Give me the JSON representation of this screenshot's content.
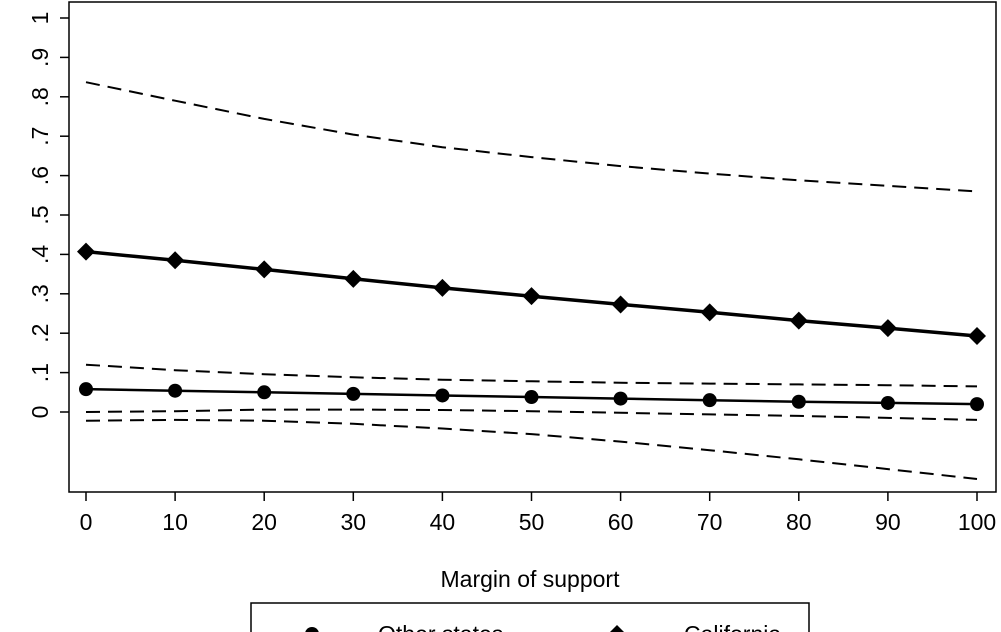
{
  "chart_data": {
    "type": "line",
    "xlabel": "Margin of support",
    "ylabel": "",
    "xlim": [
      0,
      100
    ],
    "ylim": [
      -0.2,
      1.0
    ],
    "x_ticks": [
      "0",
      "10",
      "20",
      "30",
      "40",
      "50",
      "60",
      "70",
      "80",
      "90",
      "100"
    ],
    "y_ticks": [
      "0",
      ".1",
      ".2",
      ".3",
      ".4",
      ".5",
      ".6",
      ".7",
      ".8",
      ".9",
      "1"
    ],
    "grid": false,
    "legend_position": "bottom-center",
    "x": [
      0,
      10,
      20,
      30,
      40,
      50,
      60,
      70,
      80,
      90,
      100
    ],
    "series": [
      {
        "name": "Other states",
        "marker": "circle",
        "values": [
          0.058,
          0.054,
          0.05,
          0.046,
          0.042,
          0.038,
          0.034,
          0.03,
          0.026,
          0.023,
          0.02
        ],
        "ci_upper": [
          0.12,
          0.106,
          0.096,
          0.088,
          0.082,
          0.078,
          0.074,
          0.072,
          0.07,
          0.068,
          0.065
        ],
        "ci_lower": [
          0.0,
          0.002,
          0.006,
          0.006,
          0.005,
          0.002,
          -0.002,
          -0.006,
          -0.01,
          -0.015,
          -0.02
        ]
      },
      {
        "name": "California",
        "marker": "diamond",
        "values": [
          0.407,
          0.385,
          0.362,
          0.338,
          0.315,
          0.294,
          0.273,
          0.253,
          0.232,
          0.213,
          0.193
        ],
        "ci_upper": [
          0.837,
          0.79,
          0.744,
          0.704,
          0.672,
          0.647,
          0.624,
          0.605,
          0.588,
          0.574,
          0.56
        ],
        "ci_lower": [
          -0.022,
          -0.02,
          -0.022,
          -0.03,
          -0.042,
          -0.056,
          -0.075,
          -0.097,
          -0.12,
          -0.145,
          -0.17
        ]
      }
    ]
  }
}
